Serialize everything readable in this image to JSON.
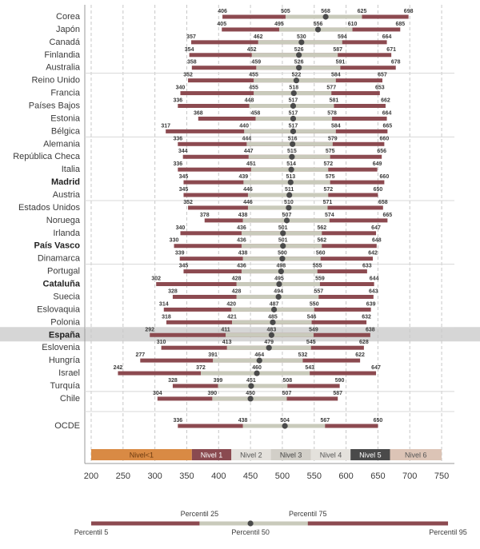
{
  "chart_data": {
    "type": "bar",
    "subtype": "percentile-range",
    "xlim": [
      190,
      770
    ],
    "xticks": [
      200,
      250,
      300,
      350,
      400,
      450,
      500,
      550,
      600,
      650,
      700,
      750
    ],
    "percentile_keys": [
      "p5",
      "p25",
      "mean",
      "p75",
      "p95"
    ],
    "grid": "vertical dashed",
    "highlight_row": "España",
    "rows": [
      {
        "label": "Corea",
        "p5": 406,
        "p25": 505,
        "mean": 568,
        "p75": 625,
        "p95": 698,
        "bold": false
      },
      {
        "label": "Japón",
        "p5": 405,
        "p25": 495,
        "mean": 556,
        "p75": 610,
        "p95": 685,
        "bold": false
      },
      {
        "label": "Canadá",
        "p5": 357,
        "p25": 462,
        "mean": 530,
        "p75": 594,
        "p95": 664,
        "bold": false
      },
      {
        "label": "Finlandia",
        "p5": 354,
        "p25": 452,
        "mean": 526,
        "p75": 587,
        "p95": 671,
        "bold": false
      },
      {
        "label": "Australia",
        "p5": 358,
        "p25": 459,
        "mean": 526,
        "p75": 591,
        "p95": 678,
        "bold": false
      },
      {
        "label": "Reino Unido",
        "p5": 352,
        "p25": 455,
        "mean": 522,
        "p75": 584,
        "p95": 657,
        "bold": false
      },
      {
        "label": "Francia",
        "p5": 340,
        "p25": 455,
        "mean": 518,
        "p75": 577,
        "p95": 653,
        "bold": false
      },
      {
        "label": "Países Bajos",
        "p5": 336,
        "p25": 448,
        "mean": 517,
        "p75": 581,
        "p95": 662,
        "bold": false
      },
      {
        "label": "Estonia",
        "p5": 368,
        "p25": 458,
        "mean": 517,
        "p75": 578,
        "p95": 664,
        "bold": false
      },
      {
        "label": "Bélgica",
        "p5": 317,
        "p25": 440,
        "mean": 517,
        "p75": 584,
        "p95": 665,
        "bold": false
      },
      {
        "label": "Alemania",
        "p5": 336,
        "p25": 444,
        "mean": 516,
        "p75": 579,
        "p95": 660,
        "bold": false
      },
      {
        "label": "República Checa",
        "p5": 344,
        "p25": 447,
        "mean": 515,
        "p75": 575,
        "p95": 656,
        "bold": false
      },
      {
        "label": "Italia",
        "p5": 336,
        "p25": 451,
        "mean": 514,
        "p75": 572,
        "p95": 649,
        "bold": false
      },
      {
        "label": "Madrid",
        "p5": 345,
        "p25": 439,
        "mean": 513,
        "p75": 575,
        "p95": 660,
        "bold": true
      },
      {
        "label": "Austria",
        "p5": 345,
        "p25": 446,
        "mean": 511,
        "p75": 572,
        "p95": 650,
        "bold": false
      },
      {
        "label": "Estados Unidos",
        "p5": 352,
        "p25": 446,
        "mean": 510,
        "p75": 571,
        "p95": 658,
        "bold": false
      },
      {
        "label": "Noruega",
        "p5": 378,
        "p25": 438,
        "mean": 507,
        "p75": 574,
        "p95": 665,
        "bold": false
      },
      {
        "label": "Irlanda",
        "p5": 340,
        "p25": 436,
        "mean": 501,
        "p75": 562,
        "p95": 647,
        "bold": false
      },
      {
        "label": "País Vasco",
        "p5": 330,
        "p25": 436,
        "mean": 501,
        "p75": 562,
        "p95": 648,
        "bold": true
      },
      {
        "label": "Dinamarca",
        "p5": 339,
        "p25": 438,
        "mean": 500,
        "p75": 560,
        "p95": 642,
        "bold": false
      },
      {
        "label": "Portugal",
        "p5": 345,
        "p25": 436,
        "mean": 498,
        "p75": 555,
        "p95": 633,
        "bold": false
      },
      {
        "label": "Cataluña",
        "p5": 302,
        "p25": 428,
        "mean": 495,
        "p75": 559,
        "p95": 644,
        "bold": true
      },
      {
        "label": "Suecia",
        "p5": 328,
        "p25": 428,
        "mean": 494,
        "p75": 557,
        "p95": 643,
        "bold": false
      },
      {
        "label": "Eslovaquia",
        "p5": 314,
        "p25": 420,
        "mean": 487,
        "p75": 550,
        "p95": 639,
        "bold": false
      },
      {
        "label": "Polonia",
        "p5": 318,
        "p25": 421,
        "mean": 485,
        "p75": 546,
        "p95": 632,
        "bold": false
      },
      {
        "label": "España",
        "p5": 292,
        "p25": 411,
        "mean": 483,
        "p75": 549,
        "p95": 638,
        "bold": true
      },
      {
        "label": "Eslovenia",
        "p5": 310,
        "p25": 413,
        "mean": 479,
        "p75": 545,
        "p95": 628,
        "bold": false
      },
      {
        "label": "Hungría",
        "p5": 277,
        "p25": 391,
        "mean": 464,
        "p75": 532,
        "p95": 622,
        "bold": false
      },
      {
        "label": "Israel",
        "p5": 242,
        "p25": 372,
        "mean": 460,
        "p75": 543,
        "p95": 647,
        "bold": false
      },
      {
        "label": "Turquía",
        "p5": 328,
        "p25": 399,
        "mean": 451,
        "p75": 508,
        "p95": 590,
        "bold": false
      },
      {
        "label": "Chile",
        "p5": 304,
        "p25": 390,
        "mean": 450,
        "p75": 507,
        "p95": 587,
        "bold": false
      },
      {
        "label": "OCDE",
        "p5": 336,
        "p25": 438,
        "mean": 504,
        "p75": 567,
        "p95": 650,
        "bold": false
      }
    ],
    "levels": [
      {
        "label": "Nivel<1",
        "from": 200,
        "to": 358,
        "color": "#d98a44",
        "text_color": "#6b3a10"
      },
      {
        "label": "Nivel 1",
        "from": 358,
        "to": 420,
        "color": "#8a4a50",
        "text_color": "#ffffff"
      },
      {
        "label": "Nivel 2",
        "from": 420,
        "to": 482,
        "color": "#e4e1dc",
        "text_color": "#555555"
      },
      {
        "label": "Nivel 3",
        "from": 482,
        "to": 545,
        "color": "#d2cfc8",
        "text_color": "#444444"
      },
      {
        "label": "Nivel 4",
        "from": 545,
        "to": 607,
        "color": "#e4e1dc",
        "text_color": "#555555"
      },
      {
        "label": "Nivel 5",
        "from": 607,
        "to": 669,
        "color": "#4a4a4a",
        "text_color": "#ffffff"
      },
      {
        "label": "Nivel 6",
        "from": 669,
        "to": 750,
        "color": "#dcc4b6",
        "text_color": "#555555"
      }
    ],
    "legend_example": {
      "p5": 200,
      "p25": 370,
      "mean": 450,
      "p75": 540,
      "p95": 760,
      "labels": {
        "p5": "Percentil 5",
        "p25": "Percentil 25",
        "mean": "Percentil 50",
        "p75": "Percentil 75",
        "p95": "Percentil 95"
      }
    },
    "colors": {
      "outer": "#8c4a50",
      "inner": "#c9cabb",
      "dot": "#4a4a4a",
      "highlight": "#d6d6d6",
      "grid": "#c8c8c8"
    }
  }
}
